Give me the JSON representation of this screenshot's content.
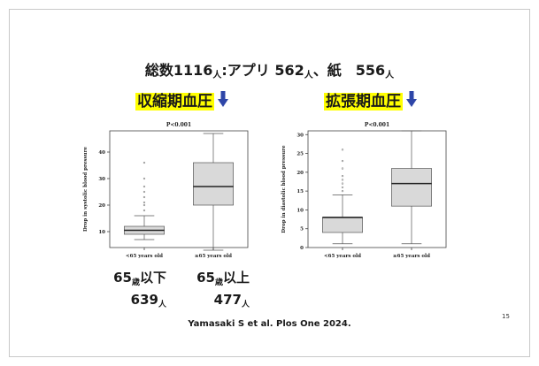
{
  "headline": {
    "total_label": "総数1116",
    "total_unit": "人",
    "sep": ":",
    "app_label": "アプリ 562",
    "app_unit": "人",
    "comma": "、",
    "paper_label": "紙　556",
    "paper_unit": "人"
  },
  "charts": [
    {
      "title": "収縮期血圧",
      "arrow": "down-arrow-icon",
      "pvalue": "P<0.001",
      "ylabel": "Drop in systolic blood pressure",
      "categories": [
        "<65 years old",
        "≥65 years old"
      ]
    },
    {
      "title": "拡張期血圧",
      "arrow": "down-arrow-icon",
      "pvalue": "P<0.001",
      "ylabel": "Drop in diastolic blood pressure",
      "categories": [
        "<65 years old",
        "≥65 years old"
      ]
    }
  ],
  "chart_data": [
    {
      "type": "boxplot",
      "title": "P<0.001",
      "ylabel": "Drop in systolic blood pressure",
      "categories": [
        "<65 years old",
        "≥65 years old"
      ],
      "ylim": [
        4,
        48
      ],
      "yticks": [
        10,
        20,
        30,
        40
      ],
      "boxes": [
        {
          "min": 7,
          "q1": 9,
          "median": 10.5,
          "q3": 12,
          "max": 16,
          "outliers": [
            18,
            20,
            21,
            23,
            25,
            27,
            30,
            36
          ]
        },
        {
          "min": 3,
          "q1": 20,
          "median": 27,
          "q3": 36,
          "max": 47,
          "outliers": []
        }
      ],
      "grid": false
    },
    {
      "type": "boxplot",
      "title": "P<0.001",
      "ylabel": "Drop in diastolic blood pressure",
      "categories": [
        "<65 years old",
        "≥65 years old"
      ],
      "ylim": [
        0,
        31
      ],
      "yticks": [
        0,
        5,
        10,
        15,
        20,
        25,
        30
      ],
      "boxes": [
        {
          "min": 1,
          "q1": 4,
          "median": 8,
          "q3": 8,
          "max": 14,
          "outliers": [
            15,
            16,
            17,
            18,
            19,
            21,
            23,
            26
          ]
        },
        {
          "min": 1,
          "q1": 11,
          "median": 17,
          "q3": 21,
          "max": 31,
          "outliers": []
        }
      ],
      "grid": false
    }
  ],
  "groups": {
    "young_age": "65",
    "young_age_unit": "歳",
    "young_range": "以下",
    "young_n": "639",
    "young_n_unit": "人",
    "old_age": "65",
    "old_age_unit": "歳",
    "old_range": "以上",
    "old_n": "477",
    "old_n_unit": "人"
  },
  "citation": "Yamasaki S et al. Plos One 2024.",
  "page_number": "15",
  "colors": {
    "highlight": "#ffff00",
    "arrow": "#2e46a8",
    "box_fill": "#d9d9d9",
    "box_stroke": "#555555"
  }
}
